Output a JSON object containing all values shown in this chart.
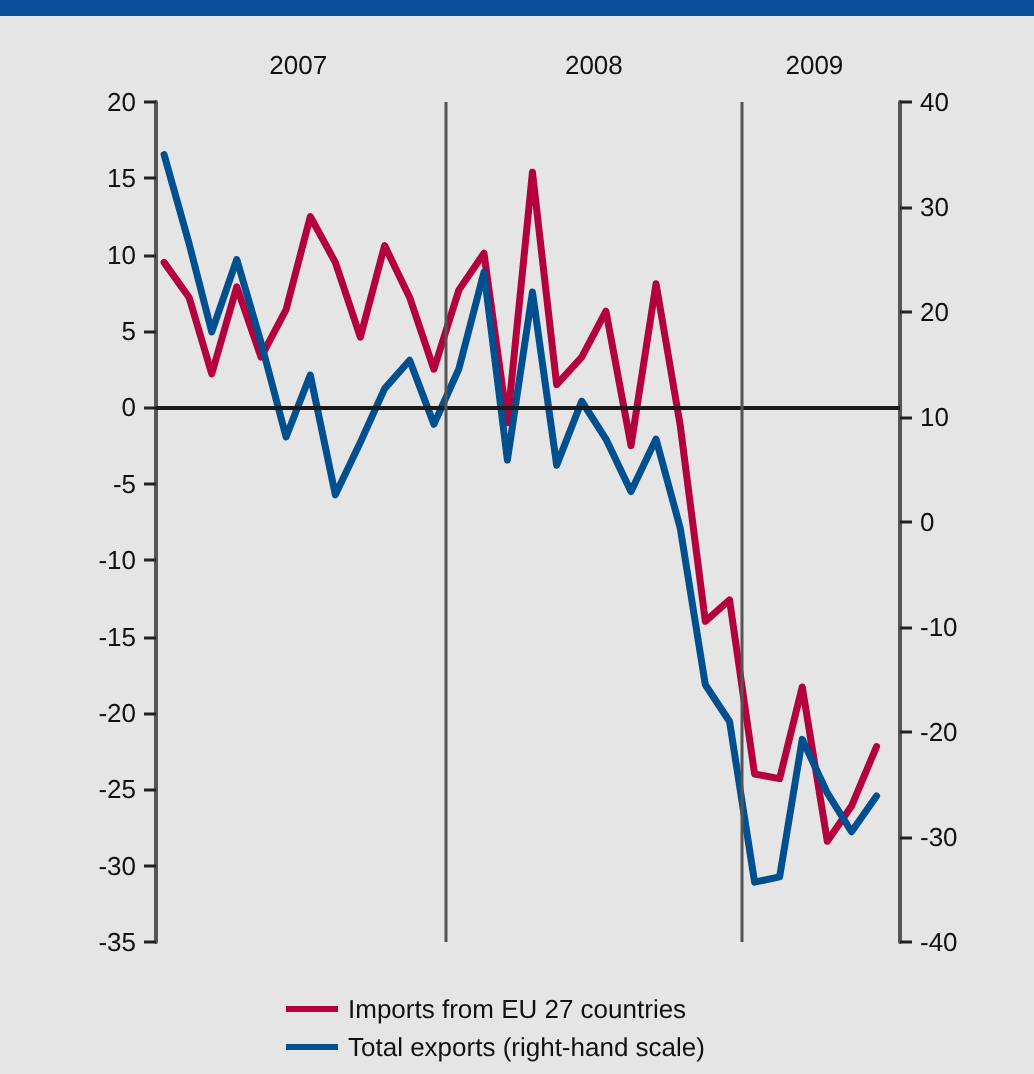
{
  "chart_data": {
    "type": "line",
    "x": [
      "2007-01",
      "2007-02",
      "2007-03",
      "2007-04",
      "2007-05",
      "2007-06",
      "2007-07",
      "2007-08",
      "2007-09",
      "2007-10",
      "2007-11",
      "2007-12",
      "2008-01",
      "2008-02",
      "2008-03",
      "2008-04",
      "2008-05",
      "2008-06",
      "2008-07",
      "2008-08",
      "2008-09",
      "2008-10",
      "2008-11",
      "2008-12",
      "2009-01",
      "2009-02",
      "2009-03",
      "2009-04",
      "2009-05",
      "2009-06"
    ],
    "series": [
      {
        "name": "Imports from EU 27 countries",
        "color": "#b4003c",
        "values": [
          9.5,
          7.2,
          2.2,
          7.9,
          3.3,
          6.4,
          12.5,
          9.5,
          4.6,
          10.6,
          7.2,
          2.5,
          7.7,
          10.1,
          -1.0,
          15.4,
          1.5,
          3.3,
          6.3,
          -2.5,
          8.1,
          -1.2,
          -14.0,
          -12.6,
          -24.0,
          -24.3,
          -18.3,
          -28.4,
          -26.1,
          -22.2
        ]
      },
      {
        "name": "Total exports (right-hand scale)",
        "color": "#00508f",
        "axis": "y2",
        "values": [
          35.0,
          26.5,
          18.1,
          25.0,
          17.1,
          8.1,
          14.0,
          2.6,
          7.6,
          12.7,
          15.4,
          9.3,
          14.6,
          23.8,
          5.9,
          21.9,
          5.4,
          11.5,
          7.9,
          2.9,
          7.9,
          -0.6,
          -15.5,
          -19.0,
          -34.3,
          -33.8,
          -20.7,
          -25.8,
          -29.5,
          -26.1
        ]
      }
    ],
    "xlim": [
      "2006-12-22",
      "2009-06-30"
    ],
    "xticks": [
      {
        "value": "2007-06-16",
        "label": "2007"
      },
      {
        "value": "2008-06-16",
        "label": "2008"
      },
      {
        "value": "2009-03-16",
        "label": "2009"
      }
    ],
    "ylim": [
      -35,
      20
    ],
    "yticks": [
      -35,
      -30,
      -25,
      -20,
      -15,
      -10,
      -5,
      0,
      5,
      10,
      15,
      20
    ],
    "y2lim": [
      -40,
      40
    ],
    "y2ticks": [
      -40,
      -30,
      -20,
      -10,
      0,
      10,
      20,
      30,
      40
    ],
    "ref_lines": [
      {
        "axis": "y",
        "value": 0,
        "color": "#1a1a1a"
      },
      {
        "axis": "x",
        "value": "2007-12-16",
        "color": "#555555"
      },
      {
        "axis": "x",
        "value": "2008-12-16",
        "color": "#555555"
      }
    ],
    "grid": false,
    "legend": "bottom",
    "marker": "none",
    "line_style": "solid"
  }
}
